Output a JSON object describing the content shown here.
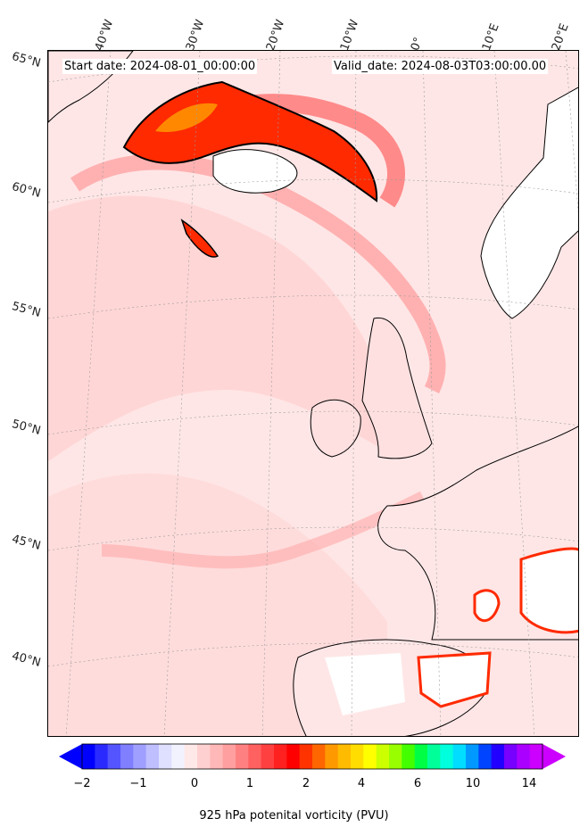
{
  "header": {
    "start_date": "Start date: 2024-08-01_00:00:00",
    "valid_date": "Valid_date: 2024-08-03T03:00:00.00"
  },
  "longitude_labels": [
    "40°W",
    "30°W",
    "20°W",
    "10°W",
    "0°",
    "10°E",
    "20°E"
  ],
  "latitude_labels": [
    "65°N",
    "60°N",
    "55°N",
    "50°N",
    "45°N",
    "40°N"
  ],
  "colorbar": {
    "title": "925 hPa potenital vorticity (PVU)",
    "tick_labels": [
      "−2",
      "−1",
      "0",
      "1",
      "2",
      "4",
      "6",
      "10",
      "14"
    ],
    "colors": [
      "#0000ff",
      "#2a2aff",
      "#5555ff",
      "#7f7fff",
      "#9f9fff",
      "#bfbfff",
      "#dfdfff",
      "#f2f2ff",
      "#ffe8e8",
      "#ffd0d0",
      "#ffb8b8",
      "#ff9f9f",
      "#ff8080",
      "#ff6060",
      "#ff4040",
      "#ff2020",
      "#ff0000",
      "#ff3300",
      "#ff6600",
      "#ff9900",
      "#ffbb00",
      "#ffdd00",
      "#ffff00",
      "#ccff00",
      "#99ff00",
      "#44ff00",
      "#00ff44",
      "#00ff99",
      "#00ffdd",
      "#00ddff",
      "#0099ff",
      "#0044ff",
      "#2200ff",
      "#7700ff",
      "#aa00ff",
      "#cc00ff"
    ]
  },
  "colors": {
    "background_low_pv": "#ffe4e4",
    "land_masked": "#ffffff",
    "coastline": "#000000",
    "high_pv": "#ff0000"
  }
}
